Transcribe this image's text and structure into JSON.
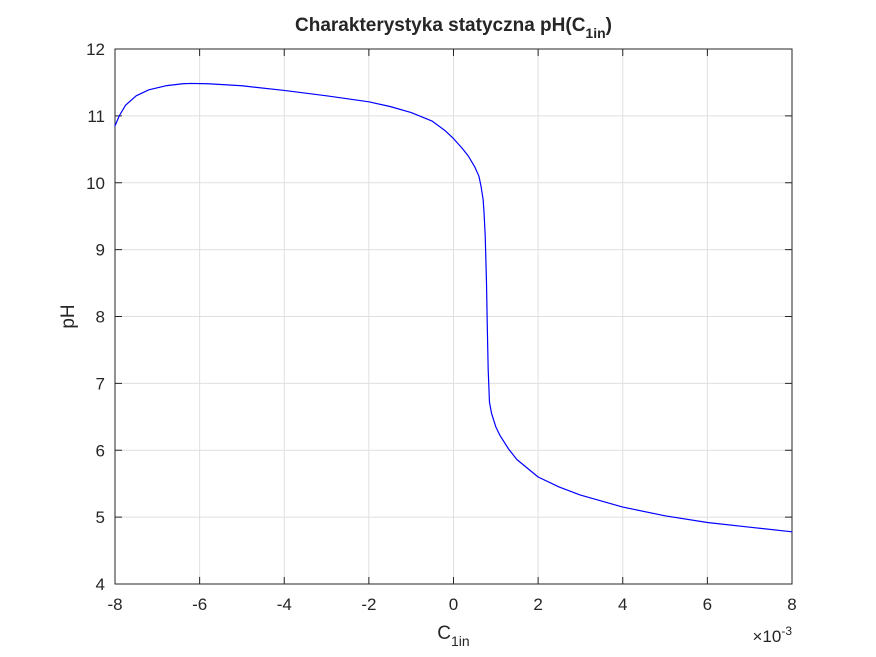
{
  "chart_data": {
    "type": "line",
    "title": {
      "main": "Charakterystyka statyczna pH(C",
      "subscript": "1in",
      "suffix": ")"
    },
    "xlabel": {
      "main": "C",
      "subscript": "1in"
    },
    "ylabel": "pH",
    "x_exponent": {
      "prefix": "×10",
      "power": "-3"
    },
    "xlim": [
      -8,
      8
    ],
    "ylim": [
      4,
      12
    ],
    "x_ticks": [
      -8,
      -6,
      -4,
      -2,
      0,
      2,
      4,
      6,
      8
    ],
    "x_tick_labels": [
      "-8",
      "-6",
      "-4",
      "-2",
      "0",
      "2",
      "4",
      "6",
      "8"
    ],
    "y_ticks": [
      4,
      5,
      6,
      7,
      8,
      9,
      10,
      11,
      12
    ],
    "y_tick_labels": [
      "4",
      "5",
      "6",
      "7",
      "8",
      "9",
      "10",
      "11",
      "12"
    ],
    "grid": true,
    "series": [
      {
        "color": "#0000ff",
        "points": [
          [
            -8.0,
            10.85
          ],
          [
            -7.9,
            11.0
          ],
          [
            -7.75,
            11.16
          ],
          [
            -7.5,
            11.3
          ],
          [
            -7.2,
            11.39
          ],
          [
            -6.8,
            11.45
          ],
          [
            -6.4,
            11.48
          ],
          [
            -6.2,
            11.485
          ],
          [
            -5.8,
            11.48
          ],
          [
            -5.0,
            11.45
          ],
          [
            -4.0,
            11.38
          ],
          [
            -3.0,
            11.3
          ],
          [
            -2.0,
            11.21
          ],
          [
            -1.5,
            11.14
          ],
          [
            -1.0,
            11.05
          ],
          [
            -0.5,
            10.92
          ],
          [
            -0.2,
            10.78
          ],
          [
            0.0,
            10.66
          ],
          [
            0.2,
            10.52
          ],
          [
            0.35,
            10.4
          ],
          [
            0.5,
            10.24
          ],
          [
            0.6,
            10.1
          ],
          [
            0.65,
            9.95
          ],
          [
            0.7,
            9.75
          ],
          [
            0.72,
            9.57
          ],
          [
            0.75,
            9.2
          ],
          [
            0.78,
            8.5
          ],
          [
            0.8,
            7.8
          ],
          [
            0.82,
            7.2
          ],
          [
            0.85,
            6.72
          ],
          [
            0.9,
            6.55
          ],
          [
            1.0,
            6.35
          ],
          [
            1.1,
            6.22
          ],
          [
            1.3,
            6.02
          ],
          [
            1.5,
            5.86
          ],
          [
            2.0,
            5.6
          ],
          [
            2.5,
            5.45
          ],
          [
            3.0,
            5.33
          ],
          [
            4.0,
            5.15
          ],
          [
            5.0,
            5.02
          ],
          [
            6.0,
            4.92
          ],
          [
            7.0,
            4.85
          ],
          [
            8.0,
            4.78
          ]
        ]
      }
    ]
  }
}
